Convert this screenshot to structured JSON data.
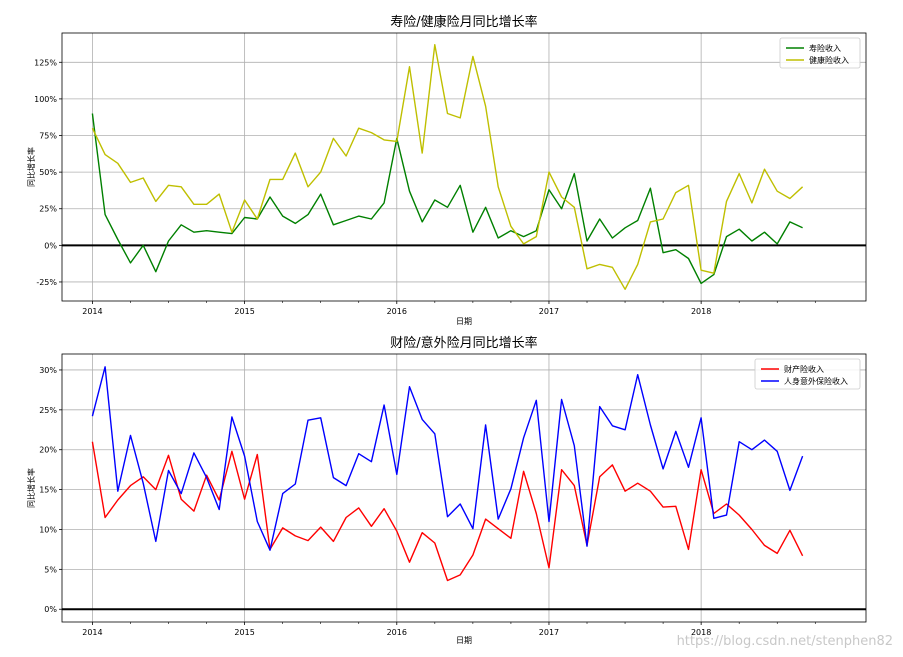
{
  "watermark": "https://blog.csdn.net/stenphen82",
  "chart_data": [
    {
      "type": "line",
      "title": "寿险/健康险月同比增长率",
      "xlabel": "日期",
      "ylabel": "同比增长率",
      "x_ticks": [
        "2014",
        "2015",
        "2016",
        "2017",
        "2018"
      ],
      "y_ticks": [
        "-25%",
        "0%",
        "25%",
        "50%",
        "75%",
        "100%",
        "125%"
      ],
      "y_tick_values": [
        -0.25,
        0,
        0.25,
        0.5,
        0.75,
        1.0,
        1.25
      ],
      "ylim": [
        -0.38,
        1.45
      ],
      "xlim": [
        -2.4,
        61
      ],
      "grid": true,
      "legend": "top-right",
      "zero_line": true,
      "series": [
        {
          "name": "寿险收入",
          "color": "#008000",
          "values": [
            0.9,
            0.21,
            0.04,
            -0.12,
            0.0,
            -0.18,
            0.03,
            0.14,
            0.09,
            0.1,
            0.09,
            0.08,
            0.19,
            0.18,
            0.33,
            0.2,
            0.15,
            0.21,
            0.35,
            0.14,
            0.17,
            0.2,
            0.18,
            0.29,
            0.73,
            0.37,
            0.16,
            0.31,
            0.26,
            0.41,
            0.09,
            0.26,
            0.05,
            0.1,
            0.06,
            0.1,
            0.38,
            0.25,
            0.49,
            0.03,
            0.18,
            0.05,
            0.12,
            0.17,
            0.39,
            -0.05,
            -0.03,
            -0.09,
            -0.26,
            -0.2,
            0.06,
            0.11,
            0.03,
            0.09,
            0.01,
            0.16,
            0.12
          ]
        },
        {
          "name": "健康险收入",
          "color": "#bfbf00",
          "values": [
            0.8,
            0.62,
            0.56,
            0.43,
            0.46,
            0.3,
            0.41,
            0.4,
            0.28,
            0.28,
            0.35,
            0.09,
            0.31,
            0.18,
            0.45,
            0.45,
            0.63,
            0.4,
            0.5,
            0.73,
            0.61,
            0.8,
            0.77,
            0.72,
            0.71,
            1.22,
            0.63,
            1.37,
            0.9,
            0.87,
            1.29,
            0.95,
            0.4,
            0.13,
            0.01,
            0.06,
            0.5,
            0.33,
            0.26,
            -0.16,
            -0.13,
            -0.15,
            -0.3,
            -0.13,
            0.16,
            0.18,
            0.36,
            0.41,
            -0.17,
            -0.19,
            0.3,
            0.49,
            0.29,
            0.52,
            0.37,
            0.32,
            0.4
          ]
        }
      ]
    },
    {
      "type": "line",
      "title": "财险/意外险月同比增长率",
      "xlabel": "日期",
      "ylabel": "同比增长率",
      "x_ticks": [
        "2014",
        "2015",
        "2016",
        "2017",
        "2018"
      ],
      "y_ticks": [
        "0%",
        "5%",
        "10%",
        "15%",
        "20%",
        "25%",
        "30%"
      ],
      "y_tick_values": [
        0,
        0.05,
        0.1,
        0.15,
        0.2,
        0.25,
        0.3
      ],
      "ylim": [
        -0.016,
        0.32
      ],
      "xlim": [
        -2.4,
        61
      ],
      "grid": true,
      "legend": "top-right",
      "zero_line": true,
      "series": [
        {
          "name": "财产险收入",
          "color": "#ff0000",
          "values": [
            0.21,
            0.115,
            0.137,
            0.155,
            0.166,
            0.15,
            0.193,
            0.138,
            0.123,
            0.168,
            0.137,
            0.198,
            0.138,
            0.194,
            0.075,
            0.102,
            0.092,
            0.086,
            0.103,
            0.085,
            0.115,
            0.127,
            0.104,
            0.126,
            0.098,
            0.059,
            0.096,
            0.083,
            0.036,
            0.043,
            0.068,
            0.113,
            0.101,
            0.089,
            0.173,
            0.12,
            0.052,
            0.175,
            0.155,
            0.08,
            0.166,
            0.181,
            0.148,
            0.158,
            0.148,
            0.128,
            0.129,
            0.075,
            0.175,
            0.12,
            0.132,
            0.118,
            0.1,
            0.08,
            0.07,
            0.099,
            0.067
          ]
        },
        {
          "name": "人身意外保险收入",
          "color": "#0000ff",
          "values": [
            0.242,
            0.304,
            0.148,
            0.218,
            0.158,
            0.085,
            0.174,
            0.145,
            0.196,
            0.165,
            0.125,
            0.241,
            0.192,
            0.11,
            0.074,
            0.145,
            0.157,
            0.237,
            0.24,
            0.165,
            0.155,
            0.195,
            0.185,
            0.256,
            0.169,
            0.279,
            0.238,
            0.22,
            0.116,
            0.132,
            0.101,
            0.231,
            0.113,
            0.151,
            0.215,
            0.262,
            0.11,
            0.263,
            0.205,
            0.079,
            0.254,
            0.23,
            0.225,
            0.294,
            0.231,
            0.176,
            0.223,
            0.178,
            0.24,
            0.114,
            0.118,
            0.21,
            0.2,
            0.212,
            0.198,
            0.149,
            0.192
          ]
        }
      ]
    }
  ]
}
